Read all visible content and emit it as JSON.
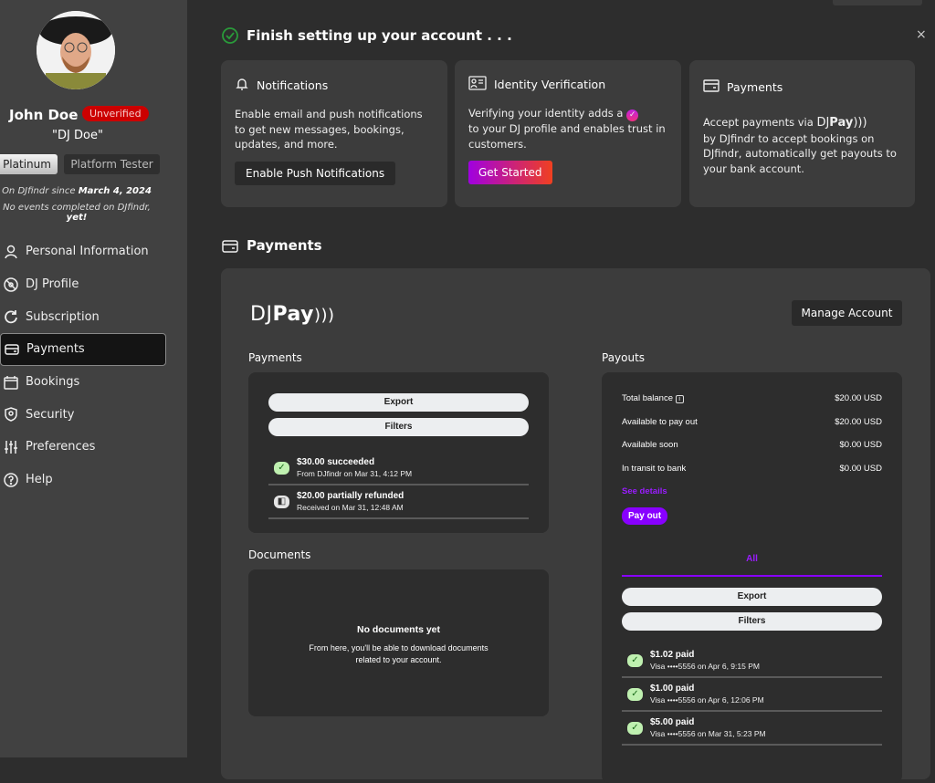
{
  "profile": {
    "name": "John Doe",
    "status": "Unverified",
    "nickname": "\"DJ Doe\"",
    "tier": "Platinum",
    "role": "Platform Tester",
    "since_prefix": "On DJfindr since ",
    "since_date": "March 4, 2024",
    "events_prefix": "No events completed on DJfindr, ",
    "events_suffix": "yet!"
  },
  "sidebar": {
    "items": [
      {
        "label": "Personal Information",
        "icon": "user-icon"
      },
      {
        "label": "DJ Profile",
        "icon": "vinyl-icon"
      },
      {
        "label": "Subscription",
        "icon": "refresh-icon"
      },
      {
        "label": "Payments",
        "icon": "credit-card-icon",
        "active": true
      },
      {
        "label": "Bookings",
        "icon": "calendar-icon"
      },
      {
        "label": "Security",
        "icon": "shield-icon"
      },
      {
        "label": "Preferences",
        "icon": "sliders-icon"
      },
      {
        "label": "Help",
        "icon": "help-icon"
      }
    ]
  },
  "setup": {
    "title": "Finish setting up your account . . .",
    "close": "×",
    "cards": [
      {
        "title": "Notifications",
        "text": "Enable email and push notifications to get new messages, bookings, updates, and more.",
        "button": "Enable Push Notifications"
      },
      {
        "title": "Identity Verification",
        "text_a": "Verifying your identity adds a",
        "text_b": "to your DJ profile and enables trust in customers.",
        "button": "Get Started"
      },
      {
        "title": "Payments",
        "text_a": "Accept payments via",
        "text_b": "by DJfindr to accept bookings on DJfindr, automatically get payouts to your bank account."
      }
    ]
  },
  "payments_section": {
    "title": "Payments",
    "logo_a": "DJ",
    "logo_b": "Pay",
    "manage": "Manage Account",
    "payments": {
      "label": "Payments",
      "export": "Export",
      "filters": "Filters",
      "items": [
        {
          "title": "$30.00 succeeded",
          "sub": "From DJfindr on Mar 31, 4:12 PM",
          "status": "succeeded"
        },
        {
          "title": "$20.00 partially refunded",
          "sub": "Received on Mar 31, 12:48 AM",
          "status": "refunded"
        }
      ]
    },
    "documents": {
      "label": "Documents",
      "empty_title": "No documents yet",
      "empty_text": "From here, you'll be able to download documents related to your account."
    },
    "payouts": {
      "label": "Payouts",
      "rows": [
        {
          "label": "Total balance",
          "value": "$20.00 USD"
        },
        {
          "label": "Available to pay out",
          "value": "$20.00 USD"
        },
        {
          "label": "Available soon",
          "value": "$0.00 USD"
        },
        {
          "label": "In transit to bank",
          "value": "$0.00 USD"
        }
      ],
      "see_details": "See details",
      "pay_out": "Pay out",
      "tab": "All",
      "export": "Export",
      "filters": "Filters",
      "items": [
        {
          "title": "$1.02 paid",
          "sub": "Visa ••••5556 on Apr 6, 9:15 PM"
        },
        {
          "title": "$1.00 paid",
          "sub": "Visa ••••5556 on Apr 6, 12:06 PM"
        },
        {
          "title": "$5.00 paid",
          "sub": "Visa ••••5556 on Mar 31, 5:23 PM"
        }
      ]
    }
  },
  "colors": {
    "accent": "#8800ff",
    "unverified": "#cc0000",
    "success": "#bff0b0"
  }
}
